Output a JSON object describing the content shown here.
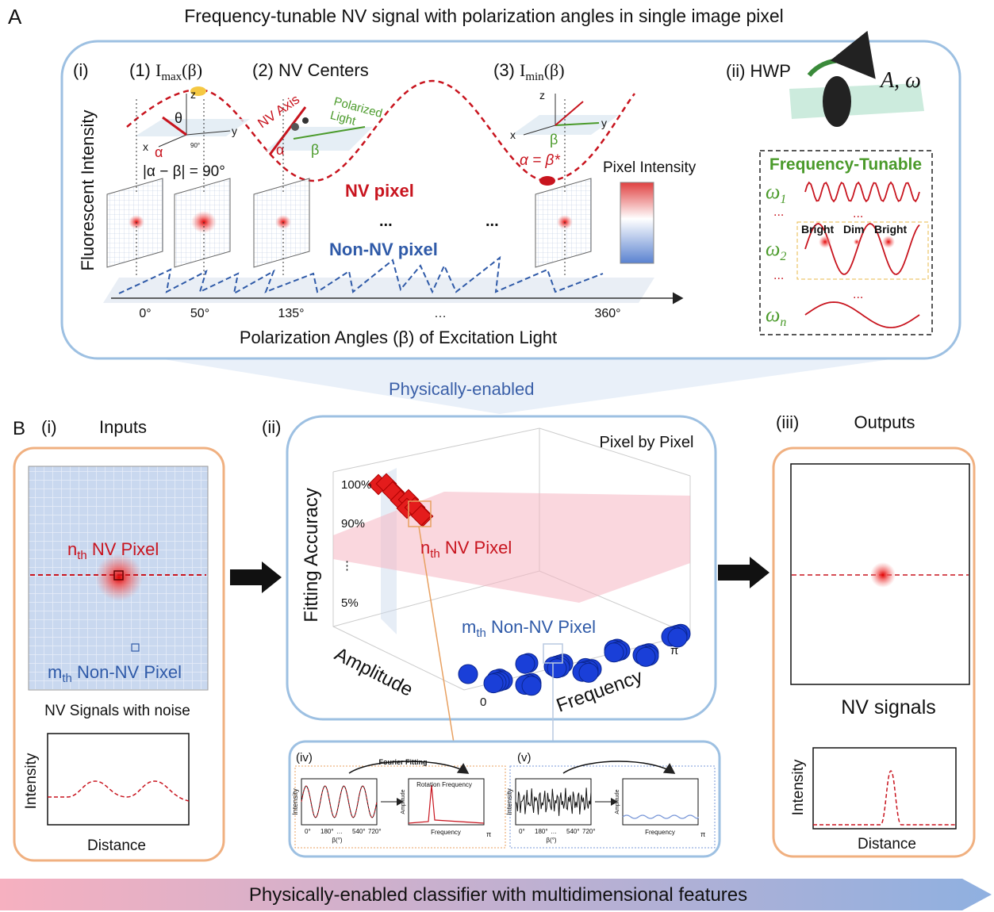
{
  "panel_a": {
    "label": "A",
    "title": "Frequency-tunable NV signal with polarization angles in single image pixel",
    "sub_i": "(i)",
    "step1": {
      "num": "(1)",
      "symbol": "I",
      "sub": "max",
      "arg": "(β)"
    },
    "step2": "(2)  NV Centers",
    "step3": {
      "num": "(3)",
      "symbol": "I",
      "sub": "min",
      "arg": "(β)"
    },
    "y_axis": "Fluorescent Intensity",
    "nv_axis": "NV Axis",
    "polarized_light": [
      "Polarized",
      "Light"
    ],
    "axis_letters": [
      "x",
      "y",
      "z",
      "θ",
      "α",
      "β",
      "90°"
    ],
    "perp_relation": "|α − β| = 90°",
    "eq_relation": "α = β*",
    "nv_pixel": "NV pixel",
    "non_nv_pixel": "Non-NV pixel",
    "pixel_intensity": "Pixel Intensity",
    "ellipsis": "...",
    "angles": [
      "0°",
      "50°",
      "135°",
      "…",
      "360°"
    ],
    "x_axis": "Polarization Angles (β) of Excitation Light",
    "sub_ii": "(ii)  HWP",
    "rotation": "A, ω",
    "freq_title": "Frequency-Tunable",
    "omegas": [
      {
        "symbol": "ω",
        "sub": "1"
      },
      {
        "symbol": "ω",
        "sub": "2"
      },
      {
        "symbol": "ω",
        "sub": "n"
      }
    ],
    "bright_dim": [
      "Bright",
      "Dim",
      "Bright"
    ]
  },
  "link": "Physically-enabled",
  "panel_b": {
    "label": "B",
    "inputs": {
      "num": "(i)",
      "title": "Inputs",
      "nv": {
        "pre": "n",
        "sub": "th",
        "text": " NV Pixel"
      },
      "non_nv": {
        "pre": "m",
        "sub": "th",
        "text": " Non-NV Pixel"
      },
      "caption": "NV Signals with noise",
      "y_axis": "Intensity",
      "x_axis": "Distance"
    },
    "model": {
      "num": "(ii)",
      "note": "Pixel by Pixel",
      "y_axis": "Fitting Accuracy",
      "ticks": [
        "100%",
        "90%",
        "⋮",
        "5%"
      ],
      "x_axis": "Amplitude",
      "z_axis": "Frequency",
      "zero": "0",
      "pi": "π",
      "nv": {
        "pre": "n",
        "sub": "th",
        "text": " NV Pixel"
      },
      "non_nv": {
        "pre": "m",
        "sub": "th",
        "text": " Non-NV Pixel"
      }
    },
    "fits": {
      "iv": "(iv)",
      "v": "(v)",
      "fourier": "Fourier Fitting",
      "rotation": "Rotation Frequency",
      "intensity": "Intensity",
      "amplitude": "Amplitude",
      "beta": "β(°)",
      "frequency": "Frequency",
      "ticks": [
        "0°",
        "180°",
        "…",
        "540°",
        "720°"
      ],
      "pi": "π"
    },
    "outputs": {
      "num": "(iii)",
      "title": "Outputs",
      "caption": "NV signals",
      "y_axis": "Intensity",
      "x_axis": "Distance"
    }
  },
  "footer": "Physically-enabled classifier with multidimensional features"
}
